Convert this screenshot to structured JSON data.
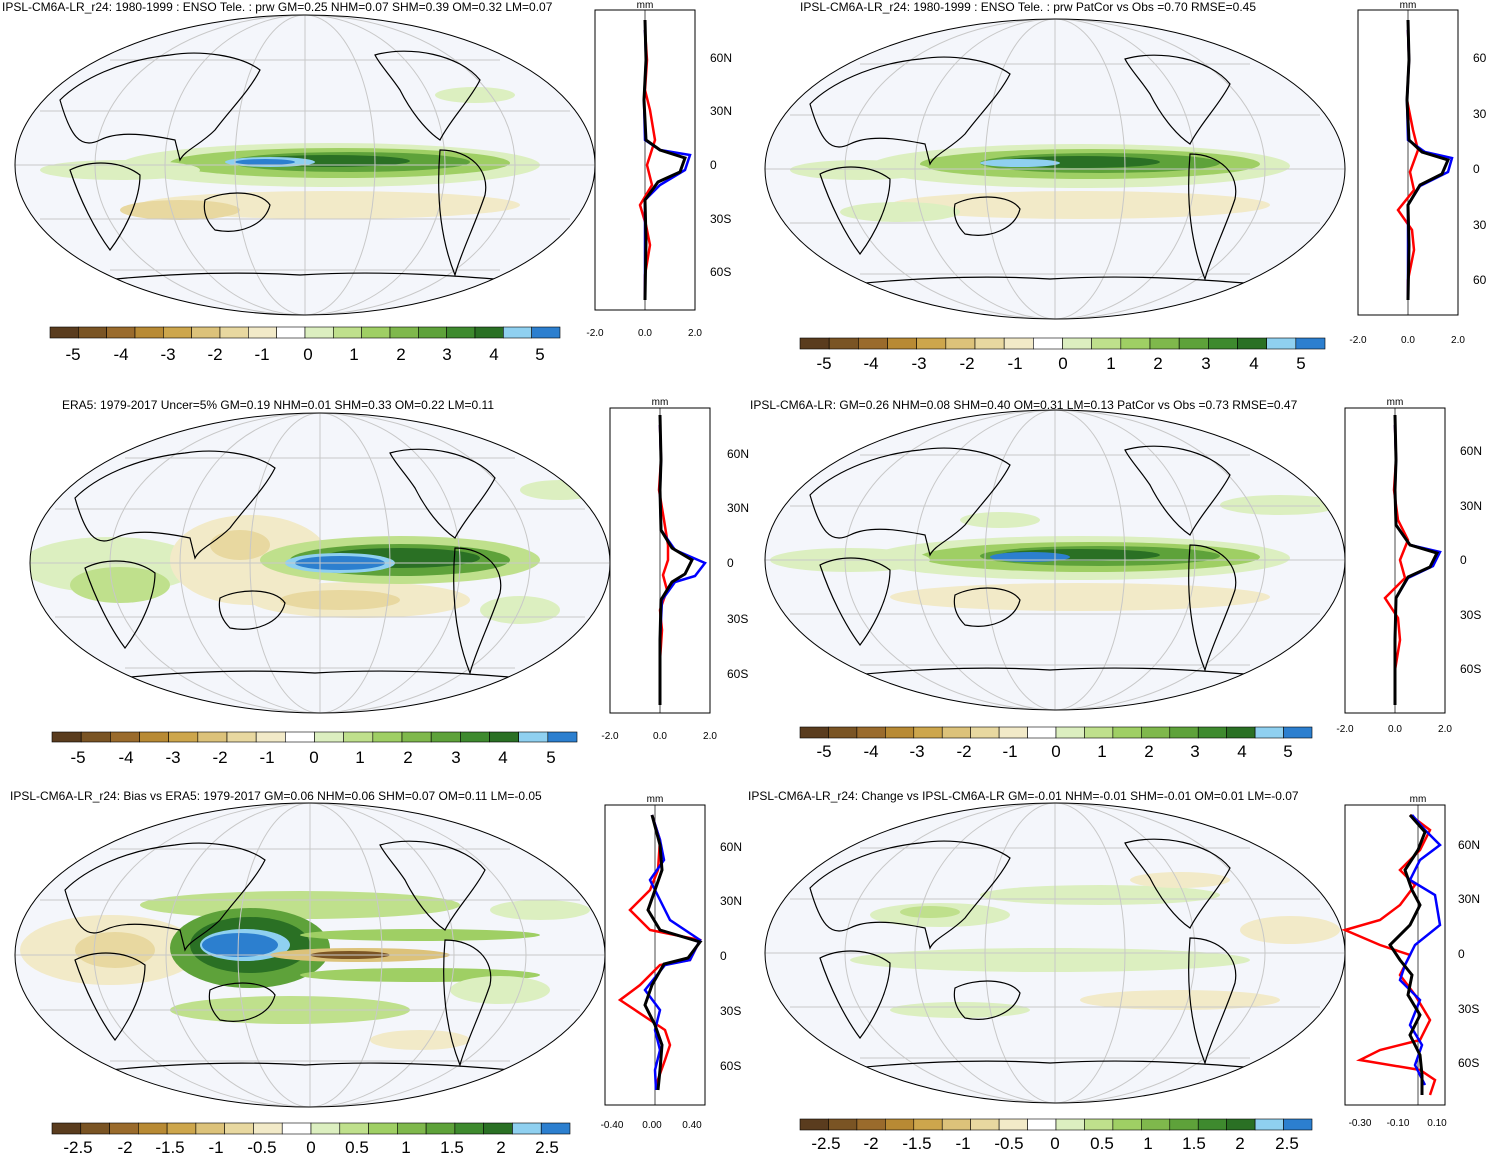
{
  "colors": {
    "ocean": "#f4f6fb",
    "grid": "#c8c8c8",
    "coast": "#000000",
    "zonal_model": "#0000ff",
    "zonal_obs": "#ff0000",
    "zonal_black": "#000000",
    "colorbar": [
      "#5a3c1e",
      "#7a5424",
      "#9a6b2c",
      "#b88a34",
      "#cda64c",
      "#dcc27a",
      "#e8d8a0",
      "#f2eac8",
      "#ffffff",
      "#dcefc0",
      "#bfe08c",
      "#9fcf64",
      "#7fb84c",
      "#5ea23a",
      "#3e8a2e",
      "#2a7024",
      "#8fd0f0",
      "#2c7fcf"
    ]
  },
  "panels": [
    {
      "id": "p1",
      "title": "IPSL-CM6A-LR_r24: 1980-1999 : ENSO Tele. : prw GM=0.25 NHM=0.07 SHM=0.39 OM=0.32 LM=0.07",
      "colorbar_labels": [
        "-5",
        "-4",
        "-3",
        "-2",
        "-1",
        "0",
        "1",
        "2",
        "3",
        "4",
        "5"
      ],
      "zonal_ticks": [
        "-2.0",
        "0.0",
        "2.0"
      ],
      "lat_labels": [
        "60N",
        "30N",
        "0",
        "30S",
        "60S"
      ],
      "unit": "mm"
    },
    {
      "id": "p2",
      "title": "IPSL-CM6A-LR_r24: 1980-1999 : ENSO Tele. : prw PatCor vs Obs =0.70 RMSE=0.45",
      "colorbar_labels": [
        "-5",
        "-4",
        "-3",
        "-2",
        "-1",
        "0",
        "1",
        "2",
        "3",
        "4",
        "5"
      ],
      "zonal_ticks": [
        "-2.0",
        "0.0",
        "2.0"
      ],
      "lat_labels": [
        "60",
        "30",
        "0",
        "30",
        "60"
      ],
      "unit": "mm"
    },
    {
      "id": "p3",
      "title": "ERA5: 1979-2017 Uncer=5% GM=0.19 NHM=0.01 SHM=0.33 OM=0.22 LM=0.11",
      "colorbar_labels": [
        "-5",
        "-4",
        "-3",
        "-2",
        "-1",
        "0",
        "1",
        "2",
        "3",
        "4",
        "5"
      ],
      "zonal_ticks": [
        "-2.0",
        "0.0",
        "2.0"
      ],
      "lat_labels": [
        "60N",
        "30N",
        "0",
        "30S",
        "60S"
      ],
      "unit": "mm"
    },
    {
      "id": "p4",
      "title": "IPSL-CM6A-LR: GM=0.26 NHM=0.08 SHM=0.40 OM=0.31 LM=0.13 PatCor vs Obs =0.73 RMSE=0.47",
      "colorbar_labels": [
        "-5",
        "-4",
        "-3",
        "-2",
        "-1",
        "0",
        "1",
        "2",
        "3",
        "4",
        "5"
      ],
      "zonal_ticks": [
        "-2.0",
        "0.0",
        "2.0"
      ],
      "lat_labels": [
        "60N",
        "30N",
        "0",
        "30S",
        "60S"
      ],
      "unit": "mm"
    },
    {
      "id": "p5",
      "title": "IPSL-CM6A-LR_r24: Bias vs ERA5: 1979-2017 GM=0.06 NHM=0.06 SHM=0.07 OM=0.11 LM=-0.05",
      "colorbar_labels": [
        "-2.5",
        "-2",
        "-1.5",
        "-1",
        "-0.5",
        "0",
        "0.5",
        "1",
        "1.5",
        "2",
        "2.5"
      ],
      "zonal_ticks": [
        "-0.40",
        "0.00",
        "0.40"
      ],
      "lat_labels": [
        "60N",
        "30N",
        "0",
        "30S",
        "60S"
      ],
      "unit": "mm"
    },
    {
      "id": "p6",
      "title": "IPSL-CM6A-LR_r24: Change vs IPSL-CM6A-LR GM=-0.01 NHM=-0.01 SHM=-0.01 OM=0.01 LM=-0.07",
      "colorbar_labels": [
        "-2.5",
        "-2",
        "-1.5",
        "-1",
        "-0.5",
        "0",
        "0.5",
        "1",
        "1.5",
        "2",
        "2.5"
      ],
      "zonal_ticks": [
        "-0.30",
        "-0.10",
        "0.10"
      ],
      "lat_labels": [
        "60N",
        "30N",
        "0",
        "30S",
        "60S"
      ],
      "unit": "mm"
    }
  ],
  "chart_data": [
    {
      "type": "heatmap",
      "title": "IPSL-CM6A-LR_r24: 1980-1999 : ENSO Tele. : prw GM=0.25 NHM=0.07 SHM=0.39 OM=0.32 LM=0.07",
      "colorbar_range": [
        -5,
        5
      ],
      "colorbar_ticks": [
        -5,
        -4,
        -3,
        -2,
        -1,
        0,
        1,
        2,
        3,
        4,
        5
      ],
      "zonal_mean": {
        "xlim": [
          -2,
          2
        ],
        "ylim": [
          -90,
          90
        ],
        "lat": [
          -80,
          -60,
          -40,
          -30,
          -20,
          -10,
          -5,
          0,
          5,
          10,
          15,
          30,
          60,
          80
        ],
        "series": [
          {
            "values": [
              0,
              0.05,
              0.1,
              -0.1,
              -0.05,
              0.3,
              1.0,
              1.8,
              1.5,
              0.8,
              0.1,
              0,
              0,
              0
            ]
          },
          {
            "values": [
              0,
              0,
              0.1,
              -0.4,
              -0.2,
              0.1,
              0.2,
              0.4,
              0.2,
              -0.6,
              -0.3,
              0,
              0,
              0
            ]
          },
          {
            "values": [
              0,
              0.02,
              0.05,
              -0.2,
              -0.1,
              0.2,
              0.7,
              1.2,
              0.9,
              0.3,
              0,
              0,
              0,
              0
            ]
          }
        ]
      }
    },
    {
      "type": "heatmap",
      "title": "IPSL-CM6A-LR_r24: 1980-1999 : ENSO Tele. : prw PatCor vs Obs =0.70 RMSE=0.45",
      "colorbar_range": [
        -5,
        5
      ],
      "colorbar_ticks": [
        -5,
        -4,
        -3,
        -2,
        -1,
        0,
        1,
        2,
        3,
        4,
        5
      ],
      "zonal_mean": {
        "xlim": [
          -2,
          2
        ],
        "ylim": [
          -90,
          90
        ],
        "lat": [
          -80,
          -60,
          -40,
          -30,
          -20,
          -10,
          -5,
          0,
          5,
          10,
          15,
          30,
          60,
          80
        ],
        "series": [
          {
            "values": [
              0,
              0,
              0.05,
              -0.1,
              -0.05,
              0.3,
              1.0,
              1.8,
              1.5,
              0.6,
              0.1,
              0,
              0,
              0
            ]
          },
          {
            "values": [
              0,
              0.05,
              0.1,
              -0.4,
              -0.3,
              0.2,
              0.4,
              0.6,
              0.3,
              -0.5,
              -0.2,
              0,
              0,
              0
            ]
          },
          {
            "values": [
              0,
              0,
              0.05,
              -0.2,
              -0.1,
              0.2,
              0.6,
              1.2,
              0.9,
              0.3,
              0,
              0,
              0,
              0
            ]
          }
        ]
      }
    },
    {
      "type": "heatmap",
      "title": "ERA5: 1979-2017 Uncer=5% GM=0.19 NHM=0.01 SHM=0.33 OM=0.22 LM=0.11",
      "colorbar_range": [
        -5,
        5
      ],
      "colorbar_ticks": [
        -5,
        -4,
        -3,
        -2,
        -1,
        0,
        1,
        2,
        3,
        4,
        5
      ],
      "zonal_mean": {
        "xlim": [
          -2,
          2
        ],
        "ylim": [
          -90,
          90
        ],
        "lat": [
          -80,
          -60,
          -40,
          -30,
          -20,
          -10,
          -5,
          0,
          5,
          10,
          15,
          30,
          60,
          80
        ],
        "series": [
          {
            "values": [
              0,
              0,
              0,
              -0.1,
              0,
              0.2,
              1.0,
              1.7,
              1.2,
              0.3,
              0,
              0,
              0,
              0
            ]
          },
          {
            "values": [
              0,
              0.05,
              0.1,
              -0.2,
              0.1,
              0.4,
              0.8,
              0.9,
              0.6,
              0.3,
              0.2,
              0.1,
              0,
              0
            ]
          },
          {
            "values": [
              0,
              0,
              0.05,
              -0.15,
              0.05,
              0.3,
              0.9,
              1.2,
              0.8,
              0.2,
              0,
              0,
              0,
              0
            ]
          }
        ]
      }
    },
    {
      "type": "heatmap",
      "title": "IPSL-CM6A-LR: GM=0.26 NHM=0.08 SHM=0.40 OM=0.31 LM=0.13 PatCor vs Obs =0.73 RMSE=0.47",
      "colorbar_range": [
        -5,
        5
      ],
      "colorbar_ticks": [
        -5,
        -4,
        -3,
        -2,
        -1,
        0,
        1,
        2,
        3,
        4,
        5
      ],
      "zonal_mean": {
        "xlim": [
          -2,
          2
        ],
        "ylim": [
          -90,
          90
        ],
        "lat": [
          -80,
          -60,
          -40,
          -30,
          -20,
          -10,
          -5,
          0,
          5,
          10,
          15,
          30,
          60,
          80
        ],
        "series": [
          {
            "values": [
              0,
              0,
              0.05,
              -0.1,
              0,
              0.3,
              1.0,
              1.7,
              1.4,
              0.5,
              0.1,
              0,
              0,
              0
            ]
          },
          {
            "values": [
              0,
              0.05,
              0.1,
              -0.5,
              -0.2,
              0.2,
              0.4,
              0.5,
              0.3,
              -0.4,
              0.3,
              0,
              0,
              0
            ]
          },
          {
            "values": [
              0,
              0,
              0.05,
              -0.2,
              -0.05,
              0.2,
              0.7,
              1.2,
              0.9,
              0.3,
              0.05,
              0,
              0,
              0
            ]
          }
        ]
      }
    },
    {
      "type": "heatmap",
      "title": "IPSL-CM6A-LR_r24: Bias vs ERA5: 1979-2017 GM=0.06 NHM=0.06 SHM=0.07 OM=0.11 LM=-0.05",
      "colorbar_range": [
        -2.5,
        2.5
      ],
      "colorbar_ticks": [
        -2.5,
        -2,
        -1.5,
        -1,
        -0.5,
        0,
        0.5,
        1,
        1.5,
        2,
        2.5
      ],
      "zonal_mean": {
        "xlim": [
          -0.5,
          0.5
        ],
        "ylim": [
          -90,
          90
        ],
        "lat": [
          -80,
          -60,
          -45,
          -35,
          -25,
          -15,
          -5,
          0,
          5,
          10,
          20,
          30,
          45,
          60,
          80
        ],
        "series": [
          {
            "values": [
              0,
              -0.05,
              0.05,
              0,
              0,
              -0.1,
              0.3,
              0.45,
              0.4,
              0.1,
              -0.05,
              0.15,
              0.1,
              0.05,
              0
            ]
          },
          {
            "values": [
              0,
              -0.1,
              0.2,
              -0.35,
              -0.2,
              -0.1,
              0.3,
              0.45,
              0.3,
              0,
              -0.25,
              -0.3,
              0.05,
              0.05,
              0
            ]
          },
          {
            "values": [
              0,
              -0.05,
              0.1,
              -0.15,
              -0.05,
              -0.1,
              0.3,
              0.45,
              0.35,
              0.05,
              -0.1,
              0.05,
              0.1,
              0.05,
              0
            ]
          }
        ]
      }
    },
    {
      "type": "heatmap",
      "title": "IPSL-CM6A-LR_r24: Change vs IPSL-CM6A-LR GM=-0.01 NHM=-0.01 SHM=-0.01 OM=0.01 LM=-0.07",
      "colorbar_range": [
        -2.5,
        2.5
      ],
      "colorbar_ticks": [
        -2.5,
        -2,
        -1.5,
        -1,
        -0.5,
        0,
        0.5,
        1,
        1.5,
        2,
        2.5
      ],
      "zonal_mean": {
        "xlim": [
          -0.35,
          0.12
        ],
        "ylim": [
          -90,
          90
        ],
        "lat": [
          -80,
          -60,
          -45,
          -35,
          -25,
          -15,
          -5,
          0,
          5,
          10,
          20,
          30,
          45,
          60,
          80
        ],
        "series": [
          {
            "values": [
              -0.05,
              -0.07,
              -0.1,
              -0.03,
              -0.06,
              -0.09,
              -0.05,
              -0.1,
              -0.08,
              0.05,
              0.02,
              0.07,
              -0.05,
              0,
              0.02
            ]
          },
          {
            "values": [
              -0.03,
              -0.25,
              -0.03,
              0,
              -0.08,
              -0.12,
              -0.15,
              -0.2,
              -0.35,
              -0.15,
              -0.1,
              -0.02,
              -0.1,
              0.05,
              -0.03
            ]
          },
          {
            "values": [
              -0.04,
              -0.1,
              -0.06,
              -0.03,
              -0.07,
              -0.08,
              -0.09,
              -0.1,
              -0.12,
              -0.05,
              -0.05,
              0.02,
              -0.08,
              0,
              0
            ]
          }
        ]
      }
    }
  ]
}
